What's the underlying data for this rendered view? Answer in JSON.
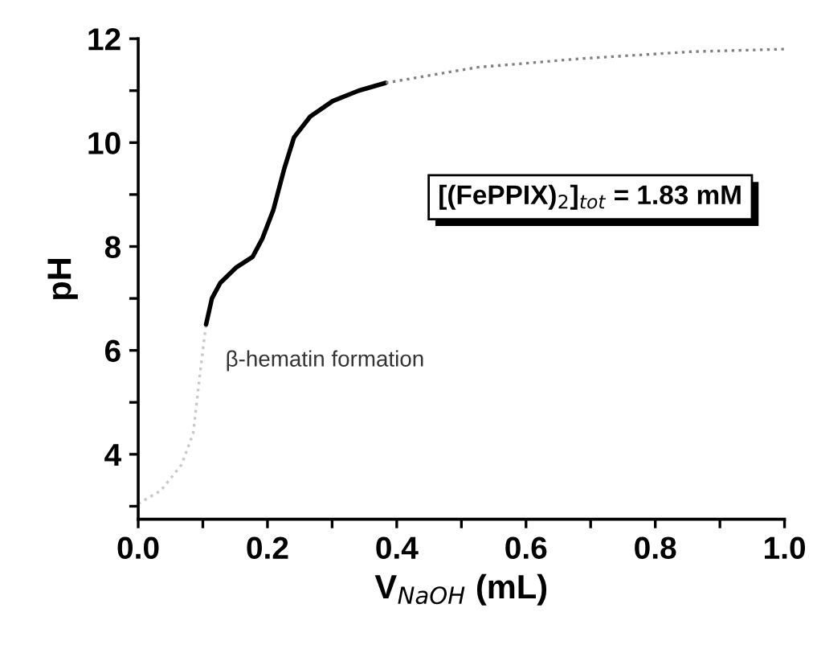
{
  "chart_data": {
    "type": "line",
    "xlabel": "V$_{NaOH}$ (mL)",
    "ylabel": "pH",
    "xlim": [
      0,
      1.0
    ],
    "ylim": [
      2.75,
      12
    ],
    "xticks": [
      {
        "value": 0,
        "label": "0.0"
      },
      {
        "value": 0.1,
        "label": null
      },
      {
        "value": 0.2,
        "label": "0.2"
      },
      {
        "value": 0.3,
        "label": null
      },
      {
        "value": 0.4,
        "label": "0.4"
      },
      {
        "value": 0.5,
        "label": null
      },
      {
        "value": 0.6,
        "label": "0.6"
      },
      {
        "value": 0.7,
        "label": null
      },
      {
        "value": 0.8,
        "label": "0.8"
      },
      {
        "value": 0.9,
        "label": null
      },
      {
        "value": 1.0,
        "label": "1.0"
      }
    ],
    "yticks": [
      {
        "value": 3,
        "label": null
      },
      4,
      {
        "value": 5,
        "label": null
      },
      6,
      {
        "value": 7,
        "label": null
      },
      8,
      {
        "value": 9,
        "label": null
      },
      10,
      {
        "value": 11,
        "label": null
      },
      12
    ],
    "grid": false,
    "legend": false,
    "marker": "none",
    "series": [
      {
        "color": "#c8c8c8",
        "line_style": "dotted",
        "x": [
          0,
          0.035,
          0.067,
          0.085,
          0.097,
          0.105
        ],
        "values": [
          3.05,
          3.3,
          3.8,
          4.4,
          5.7,
          6.5
        ]
      },
      {
        "color": "#000000",
        "line_style": "solid",
        "x": [
          0.105,
          0.114,
          0.127,
          0.152,
          0.177,
          0.192,
          0.209,
          0.226,
          0.241,
          0.266,
          0.301,
          0.341,
          0.383
        ],
        "values": [
          6.5,
          7.0,
          7.3,
          7.6,
          7.8,
          8.15,
          8.7,
          9.5,
          10.1,
          10.5,
          10.8,
          11.0,
          11.15
        ]
      },
      {
        "color": "#808080",
        "line_style": "dotted",
        "x": [
          0.383,
          0.525,
          0.689,
          0.856,
          1.0
        ],
        "values": [
          11.15,
          11.45,
          11.62,
          11.75,
          11.8
        ]
      }
    ],
    "annotations": [
      "[(FePPIX)$_{2}$]$_{tot}$ = 1.83 mM",
      "β-hematin formation"
    ]
  }
}
